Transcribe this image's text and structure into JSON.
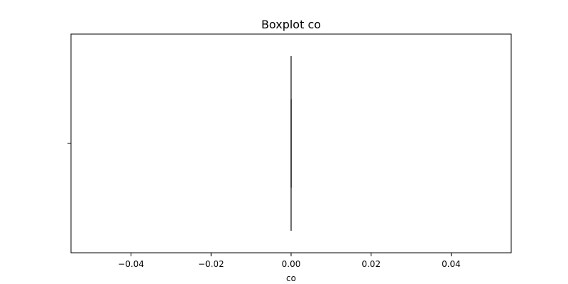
{
  "chart_data": {
    "type": "box",
    "title": "Boxplot co",
    "xlabel": "co",
    "ylabel": "",
    "xlim": [
      -0.055,
      0.055
    ],
    "xticks": [
      -0.04,
      -0.02,
      0.0,
      0.02,
      0.04
    ],
    "xtick_labels": [
      "−0.04",
      "−0.02",
      "0.00",
      "0.02",
      "0.04"
    ],
    "grid": false,
    "box": {
      "whisker_low": 0.0,
      "q1": 0.0,
      "median": 0.0,
      "q3": 0.0,
      "whisker_high": 0.0,
      "color": "#3f3f3f"
    }
  }
}
